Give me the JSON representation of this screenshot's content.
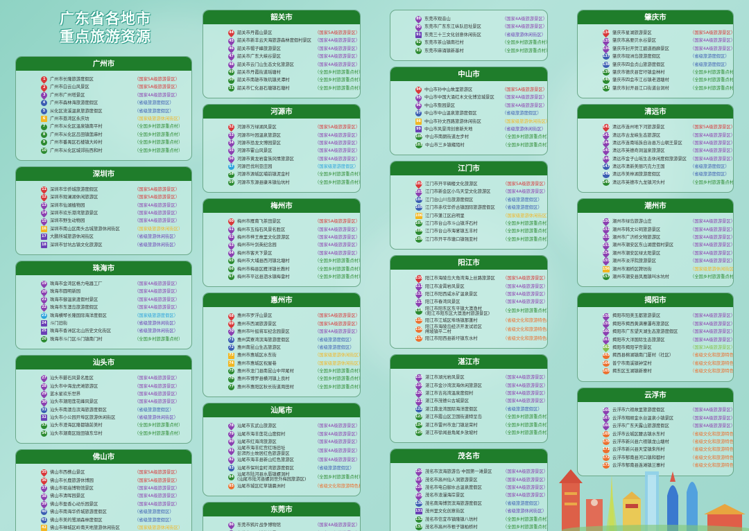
{
  "title": {
    "line1": "广东省各地市",
    "line2": "重点旅游资源"
  },
  "categories": {
    "5A": {
      "label": "（国家5A级旅游景区）",
      "color": "#d8383a",
      "shape": "pin"
    },
    "4A": {
      "label": "（国家4A级旅游景区）",
      "color": "#8b3fb0",
      "shape": "pin"
    },
    "3A": {
      "label": "（国家3A级旅游景区）",
      "color": "#86c04a",
      "shape": "pin"
    },
    "SD": {
      "label": "（省级旅游度假区）",
      "color": "#3b5db2",
      "shape": "circ"
    },
    "GD": {
      "label": "（国家级旅游度假区）",
      "color": "#2aa3dc",
      "shape": "circ"
    },
    "GJ": {
      "label": "（国家级旅游休闲街区）",
      "color": "#f2b623",
      "shape": "sq"
    },
    "SJ": {
      "label": "（省级旅游休闲街区）",
      "color": "#6a3fb5",
      "shape": "sq"
    },
    "CUN": {
      "label": "（全国乡村旅游重点村）",
      "color": "#2c8a30",
      "shape": "circ"
    },
    "SC": {
      "label": "（省级文化和旅游特色村）",
      "color": "#ec6f2e",
      "shape": "circ"
    }
  },
  "cities": [
    {
      "name": "广州市",
      "items": [
        [
          1,
          "广州市长隆旅游度假区",
          "5A"
        ],
        [
          2,
          "广州市白云山风景区",
          "5A"
        ],
        [
          3,
          "广州市广州塔景区",
          "4A"
        ],
        [
          4,
          "广州市森林海旅游度假区",
          "SD"
        ],
        [
          5,
          "从化区流溪温泉旅游度假区",
          "SD"
        ],
        [
          6,
          "广州市荔湾区永庆坊",
          "GJ"
        ],
        [
          7,
          "广州市从化区温泉镇南平村",
          "CUN"
        ],
        [
          8,
          "广州市从化区吕田镇莲麻村",
          "CUN"
        ],
        [
          9,
          "广州市番禺区石楼镇大岭村",
          "CUN"
        ],
        [
          10,
          "广州市从化区城郊街西和村",
          "CUN"
        ]
      ]
    },
    {
      "name": "深圳市",
      "items": [
        [
          11,
          "深圳市华侨城旅游度假区",
          "5A"
        ],
        [
          12,
          "深圳市观澜湖休闲旅游区",
          "5A"
        ],
        [
          13,
          "深圳市仙湖植物园",
          "4A"
        ],
        [
          14,
          "深圳市欢乐港湾旅游景区",
          "4A"
        ],
        [
          15,
          "深圳市野生动物园",
          "4A"
        ],
        [
          16,
          "深圳市南山区南头古城旅游休闲街区",
          "GJ"
        ],
        [
          17,
          "大鹏所城旅游休闲街区",
          "SJ"
        ],
        [
          18,
          "深圳市甘坑古镇文化旅游区",
          "SJ"
        ]
      ]
    },
    {
      "name": "珠海市",
      "items": [
        [
          19,
          "珠海市金湾区格力电器工厂",
          "4A"
        ],
        [
          20,
          "珠海市圆明新园",
          "4A"
        ],
        [
          21,
          "珠海市御温泉渡假村景区",
          "4A"
        ],
        [
          22,
          "珠海市东澳岛旅游度假区",
          "4A"
        ],
        [
          23,
          "珠海横琴长隆国际海洋度假区",
          "GD"
        ],
        [
          24,
          "斗门旧街",
          "SJ"
        ],
        [
          25,
          "珠海市香洲区北山历史文化街区",
          "SJ"
        ],
        [
          26,
          "珠海市斗门区斗门镇南门村",
          "CUN"
        ]
      ]
    },
    {
      "name": "汕头市",
      "items": [
        [
          27,
          "汕头市礐石风景名胜区",
          "4A"
        ],
        [
          28,
          "汕头市中海龙虎滩旅游区",
          "4A"
        ],
        [
          29,
          "蓝水星欢乐世界",
          "4A"
        ],
        [
          30,
          "汕头市潮阳莲花峰风景区",
          "4A"
        ],
        [
          31,
          "汕头市南澳岛滨海旅游度假区",
          "SD"
        ],
        [
          32,
          "汕头市小公园开埠区旅游休闲街区",
          "SJ"
        ],
        [
          33,
          "汕头市澄海区隆都镇前美村",
          "CUN"
        ],
        [
          34,
          "汕头市潮南区陇田镇东华村",
          "CUN"
        ]
      ]
    },
    {
      "name": "佛山市",
      "items": [
        [
          35,
          "佛山市西樵山景区",
          "5A"
        ],
        [
          36,
          "佛山市长鹿旅游休博园",
          "5A"
        ],
        [
          37,
          "佛山市祖庙博物馆景区",
          "4A"
        ],
        [
          38,
          "佛山市清晖园景区",
          "4A"
        ],
        [
          39,
          "佛山市盈香心动乐园景区",
          "4A"
        ],
        [
          40,
          "佛山市南海华侨城旅游度假区",
          "SD"
        ],
        [
          41,
          "佛山市美的鹭湖森林度假区",
          "SD"
        ],
        [
          42,
          "佛山市禅城区岭南天地旅游休闲街区",
          "GJ"
        ],
        [
          43,
          "佛山市禅城区南庄镇紫南村",
          "CUN"
        ]
      ]
    },
    {
      "name": "韶关市",
      "items": [
        [
          44,
          "韶关市丹霞山景区",
          "5A"
        ],
        [
          45,
          "韶关市新丰云天海旅游森林度假村景区",
          "4A"
        ],
        [
          46,
          "韶关市帽子峰旅游景区",
          "4A"
        ],
        [
          47,
          "韶关市广东大峡谷景区",
          "4A"
        ],
        [
          48,
          "韶关市云门山生态文化旅游区",
          "4A"
        ],
        [
          49,
          "韶关市丹霞街道瑶塘村",
          "CUN"
        ],
        [
          50,
          "韶关市南雄市珠玑镇灵潭村",
          "CUN"
        ],
        [
          51,
          "韶关市仁化县石塘镇石塘村",
          "CUN"
        ]
      ]
    },
    {
      "name": "河源市",
      "items": [
        [
          52,
          "河源市万绿湖风景区",
          "5A"
        ],
        [
          53,
          "河源市叶园温泉旅游区",
          "4A"
        ],
        [
          54,
          "河源市恐龙文博园景区",
          "4A"
        ],
        [
          55,
          "河源市霍山风景区",
          "4A"
        ],
        [
          56,
          "河源市黄龙岩畲族风情旅游区",
          "4A"
        ],
        [
          57,
          "河源巴伐利亚庄园",
          "GD"
        ],
        [
          58,
          "河源市源城区埔前镇泥金村",
          "CUN"
        ],
        [
          59,
          "河源市东源县康禾镇仙坑村",
          "CUN"
        ]
      ]
    },
    {
      "name": "梅州市",
      "items": [
        [
          60,
          "梅州市雁南飞茶田景区",
          "5A"
        ],
        [
          61,
          "梅州市五指石风景名胜区",
          "4A"
        ],
        [
          62,
          "梅州市梓王故里文化旅游区",
          "4A"
        ],
        [
          63,
          "梅州市叶剑英纪念园",
          "4A"
        ],
        [
          64,
          "梅州市客天下景区",
          "4A"
        ],
        [
          65,
          "梅州市大埔县西河镇北塘村",
          "CUN"
        ],
        [
          66,
          "梅州市梅县区雁洋镇长教村",
          "CUN"
        ],
        [
          67,
          "梅州市平远县泗水镇梅畲村",
          "CUN"
        ]
      ]
    },
    {
      "name": "惠州市",
      "items": [
        [
          68,
          "惠州市罗浮山景区",
          "5A"
        ],
        [
          69,
          "惠州市西湖旅游景区",
          "5A"
        ],
        [
          70,
          "惠州市叶挺将军纪念园景区",
          "4A"
        ],
        [
          71,
          "惠州巽寮湾滨海旅游度假区",
          "SD"
        ],
        [
          72,
          "惠州南昆山生态旅游区",
          "SD"
        ],
        [
          73,
          "惠州市惠城区水东街",
          "GJ"
        ],
        [
          74,
          "惠州市惠城区祝屋巷",
          "GJ"
        ],
        [
          75,
          "惠州市龙门县南昆山中坪尾村",
          "CUN"
        ],
        [
          76,
          "惠州市博罗县横河镇上良村",
          "CUN"
        ],
        [
          77,
          "惠州市惠阳区秋长街道周田村",
          "CUN"
        ]
      ]
    },
    {
      "name": "汕尾市",
      "items": [
        [
          78,
          "汕尾市玄武山旅游区",
          "4A"
        ],
        [
          79,
          "汕尾市海丰莲花山度假村",
          "4A"
        ],
        [
          80,
          "汕尾市红海湾旅游区",
          "4A"
        ],
        [
          81,
          "汕尾市海丰红宫红场旧址\n彭湃烈士故居红色旅游景区",
          "4A"
        ],
        [
          82,
          "汕尾市海丰县新山红色旅游区",
          "4A"
        ],
        [
          83,
          "汕尾市保利金町湾旅游度假区",
          "SD"
        ],
        [
          84,
          "汕尾市陆河县水唇镇螺洞村\n(汕尾市陆河县螺洞世外梅园旅游区)",
          "CUN"
        ],
        [
          85,
          "汕尾市城区红草镇晨洲村",
          "SC"
        ]
      ]
    },
    {
      "name": "东莞市",
      "items": [
        [
          86,
          "东莞市鸦片战争博物馆",
          "4A"
        ],
        [
          87,
          "东莞市可园博物馆景区",
          "4A"
        ],
        [
          88,
          "东莞市南市文化旅游区",
          "4A"
        ]
      ]
    },
    {
      "name": "",
      "items": [
        [
          89,
          "东莞市观音山",
          "4A"
        ],
        [
          90,
          "东莞市广东东江纵队旧址景区",
          "4A"
        ],
        [
          91,
          "东莞三十三文化创意休闲街区",
          "SJ"
        ],
        [
          92,
          "东莞市茶山镇南社村",
          "CUN"
        ],
        [
          93,
          "东莞市麻涌镇新基村",
          "CUN"
        ]
      ]
    },
    {
      "name": "中山市",
      "items": [
        [
          94,
          "中山市孙中山故里旅游区",
          "5A"
        ],
        [
          95,
          "中山市中国大涌红木文化博览城景区",
          "4A"
        ],
        [
          96,
          "中山市詹园景区",
          "4A"
        ],
        [
          97,
          "中山市中山温泉旅游度假区",
          "SD"
        ],
        [
          98,
          "中山市孙文西路旅游休闲街区",
          "GJ"
        ],
        [
          99,
          "中山市风景湾创意新天地",
          "SJ"
        ],
        [
          100,
          "中山市南朗街道左步村",
          "CUN"
        ],
        [
          101,
          "中山市三乡镇雍陌村",
          "CUN"
        ]
      ]
    },
    {
      "name": "江门市",
      "items": [
        [
          102,
          "江门市开平碉楼文化旅游区",
          "5A"
        ],
        [
          103,
          "江门市新会区小鸟天堂文化旅游区",
          "4A"
        ],
        [
          104,
          "江门台山川岛旅游度假区",
          "SD"
        ],
        [
          105,
          "江门市赤坎华侨古镇国际旅游度假区",
          "SD"
        ],
        [
          106,
          "江门市蓬江区启明里",
          "GJ"
        ],
        [
          107,
          "江门市台山市斗山镇浮石村",
          "CUN"
        ],
        [
          108,
          "江门市台山市海宴镇五丰村",
          "CUN"
        ],
        [
          109,
          "江门市开平市塘口镇强亚村",
          "CUN"
        ]
      ]
    },
    {
      "name": "阳江市",
      "items": [
        [
          110,
          "阳江市海陵岛大角湾海上丝路旅游区",
          "5A"
        ],
        [
          111,
          "阳江市凌霄岩风景区",
          "4A"
        ],
        [
          112,
          "阳江市阳西咸水矿温泉景区",
          "4A"
        ],
        [
          113,
          "阳江市春湾风景区",
          "4A"
        ],
        [
          114,
          "阳江市阳东区东平镇大澳渔村\n(阳江市阳东区大澳渔村旅游景区)",
          "CUN"
        ],
        [
          115,
          "阳江市江城区埠场镇那蓬村",
          "SC"
        ],
        [
          116,
          "阳江市海陵岛经济开发试验区\n闸坡镇平二村",
          "SC"
        ],
        [
          117,
          "阳江市阳西县新圩镇东水村",
          "SC"
        ]
      ]
    },
    {
      "name": "湛江市",
      "items": [
        [
          118,
          "湛江市湖光岩风景区",
          "4A"
        ],
        [
          119,
          "湛江市金沙湾滨海休闲旅游区",
          "4A"
        ],
        [
          120,
          "湛江市吉兆湾温泉度假村",
          "4A"
        ],
        [
          121,
          "湛江市茂德公古城景区",
          "4A"
        ],
        [
          122,
          "湛江鼎龙湾国际海洋度假区",
          "SD"
        ],
        [
          123,
          "湛江市霞山区卫国街道特呈岛",
          "CUN"
        ],
        [
          124,
          "湛江市雷州市龙门镇足荣村",
          "CUN"
        ],
        [
          125,
          "湛江市徐闻县角尾乡放坡村",
          "CUN"
        ]
      ]
    },
    {
      "name": "茂名市",
      "items": [
        [
          126,
          "茂名市滨海旅游岛·中国第一滩景区",
          "4A"
        ],
        [
          127,
          "茂名市高州仙人洞旅游景区",
          "4A"
        ],
        [
          128,
          "茂名市电白御水古温泉度假区",
          "4A"
        ],
        [
          129,
          "茂名市浪漫海岸景区",
          "4A"
        ],
        [
          130,
          "茂名南海博贺滨海旅游度假区",
          "SD"
        ],
        [
          131,
          "茂州里文化创意街区",
          "SJ"
        ],
        [
          132,
          "茂名市信宜市镇隆镇八坊村",
          "CUN"
        ],
        [
          133,
          "茂名市高州市根子镇柏桥村",
          "CUN"
        ]
      ]
    },
    {
      "name": "肇庆市",
      "items": [
        [
          134,
          "肇庆市星湖旅游景区",
          "5A"
        ],
        [
          135,
          "肇庆市高要贝水谷景区",
          "4A"
        ],
        [
          136,
          "肇庆市封开贺江碧道画廊景区",
          "4A"
        ],
        [
          137,
          "肇庆市砚洲岛旅游度假区",
          "SD"
        ],
        [
          138,
          "肇庆市四会贞山旅游度假区",
          "SD"
        ],
        [
          139,
          "肇庆市德庆县官圩镇金林村",
          "CUN"
        ],
        [
          140,
          "肇庆市四会市江谷镇老泗塘村",
          "CUN"
        ],
        [
          141,
          "肇庆市封开县江口街道台洞村",
          "CUN"
        ]
      ]
    },
    {
      "name": "清远市",
      "items": [
        [
          142,
          "清远市连州地下河旅游景区",
          "5A"
        ],
        [
          143,
          "清远市古龙峡生态旅游区",
          "4A"
        ],
        [
          144,
          "清远市连南瑶族自治县万山朝王景区",
          "4A"
        ],
        [
          145,
          "清远市英德奇洞温泉旅游区",
          "4A"
        ],
        [
          146,
          "清远市金子山瑶生态休闲度假旅游景区",
          "4A"
        ],
        [
          147,
          "清远市清新美丽巧克力王国",
          "SD"
        ],
        [
          148,
          "清远市美林湖旅游度假区",
          "SD"
        ],
        [
          149,
          "清远市英德市九龙镇河头村",
          "CUN"
        ]
      ]
    },
    {
      "name": "潮州市",
      "items": [
        [
          150,
          "潮州市绿岛旅游山庄",
          "4A"
        ],
        [
          151,
          "潮州市韩文公祠旅游景区",
          "4A"
        ],
        [
          152,
          "潮州市广济桥文物旅游区",
          "4A"
        ],
        [
          153,
          "潮州市潮安区东山湖度假村景区",
          "4A"
        ],
        [
          154,
          "潮州市潮安区绿太阳景区",
          "4A"
        ],
        [
          155,
          "潮州市淡浮院旅游景区",
          "4A"
        ],
        [
          156,
          "潮州市湘桥区牌坊街",
          "GJ"
        ],
        [
          157,
          "潮州市潮安县凤凰镇叫水坑村",
          "CUN"
        ]
      ]
    },
    {
      "name": "揭阳市",
      "items": [
        [
          158,
          "揭阳市阳美玉都旅游景区",
          "4A"
        ],
        [
          159,
          "揭阳市揭西黄满寨瀑布旅游区",
          "4A"
        ],
        [
          160,
          "揭阳市广东望天湖生态旅游度假区",
          "4A"
        ],
        [
          161,
          "揭阳市大洋国际生态旅游区",
          "4A"
        ],
        [
          162,
          "揭阳市揭阳学宫景区",
          "3A"
        ],
        [
          163,
          "揭西县棉湖镇南门厦村（社区）",
          "SC"
        ],
        [
          164,
          "普宁市南溪镇钟堂村",
          "SC"
        ],
        [
          165,
          "揭东区玉湖镇新寮村",
          "SC"
        ]
      ]
    },
    {
      "name": "云浮市",
      "items": [
        [
          166,
          "云浮市六祖故里旅游度假区",
          "4A"
        ],
        [
          167,
          "云浮市翔顺金水台温泉小镇景区",
          "4A"
        ],
        [
          168,
          "云浮市广东天露山旅游度假区",
          "4A"
        ],
        [
          169,
          "云浮市云城区腰古镇水东村",
          "SC"
        ],
        [
          170,
          "云浮市新兴县六祖镇龙山塘村",
          "SC"
        ],
        [
          171,
          "云浮市新兴县天堂镇朱所村",
          "SC"
        ],
        [
          172,
          "云浮市郁南县河口镇和都村",
          "SC"
        ],
        [
          173,
          "云浮市郁南县连滩镇兰寨村",
          "SC"
        ]
      ]
    }
  ]
}
